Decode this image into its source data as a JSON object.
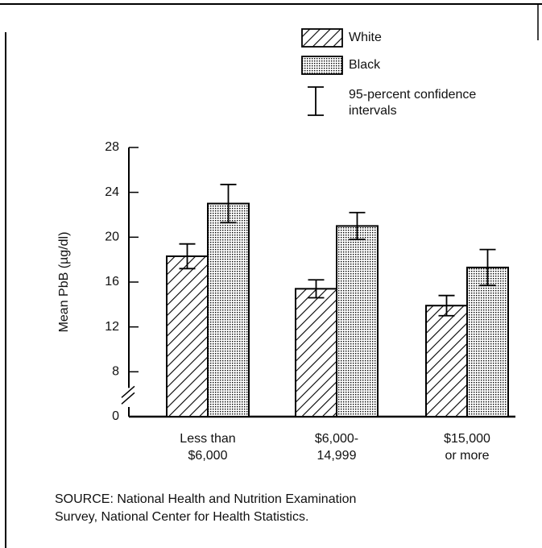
{
  "chart_data": {
    "type": "bar",
    "y_label": "Mean PbB (µg/dl)",
    "categories": [
      [
        "Less than",
        "$6,000"
      ],
      [
        "$6,000-",
        "14,999"
      ],
      [
        "$15,000",
        "or more"
      ]
    ],
    "series": [
      {
        "name": "White",
        "color": "#000000",
        "pattern": "hatch",
        "values": [
          18.3,
          15.4,
          13.9
        ],
        "errors": [
          1.1,
          0.8,
          0.9
        ]
      },
      {
        "name": "Black",
        "color": "#000000",
        "pattern": "dots",
        "values": [
          23.0,
          21.0,
          17.3
        ],
        "errors": [
          1.7,
          1.2,
          1.6
        ]
      }
    ],
    "error_legend": [
      "95-percent confidence",
      "intervals"
    ],
    "ylim": [
      0,
      28
    ],
    "yticks": [
      0,
      8,
      12,
      16,
      20,
      24,
      28
    ],
    "axis_break": [
      0,
      8
    ],
    "source": [
      "SOURCE:  National Health and Nutrition Examination",
      "Survey, National Center for Health Statistics."
    ]
  }
}
